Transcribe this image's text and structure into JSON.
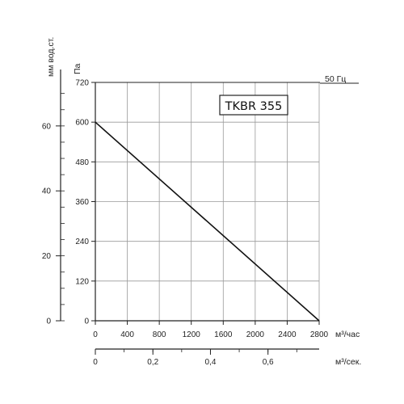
{
  "chart_data": {
    "type": "line",
    "model_label": "TKBR 355",
    "frequency_label": "50 Гц",
    "series": [
      {
        "x": [
          0,
          2800
        ],
        "y": [
          600,
          0
        ]
      }
    ],
    "x_axis": {
      "label": "м³/час",
      "ticks": [
        0,
        400,
        800,
        1200,
        1600,
        2000,
        2400,
        2800
      ],
      "range": [
        0,
        2800
      ]
    },
    "x2_axis": {
      "label": "м³/сек.",
      "ticks": [
        0,
        0.2,
        0.4,
        0.6
      ],
      "tick_labels": [
        "0",
        "0,2",
        "0,4",
        "0,6"
      ],
      "range": [
        0,
        0.7778
      ]
    },
    "y_axis": {
      "label": "Па",
      "ticks": [
        0,
        120,
        240,
        360,
        480,
        600,
        720
      ],
      "range": [
        0,
        720
      ]
    },
    "y2_axis": {
      "label": "мм вод.ст.",
      "ticks": [
        0,
        20,
        40,
        60
      ],
      "range": [
        0,
        73.4
      ]
    },
    "grid": true
  }
}
